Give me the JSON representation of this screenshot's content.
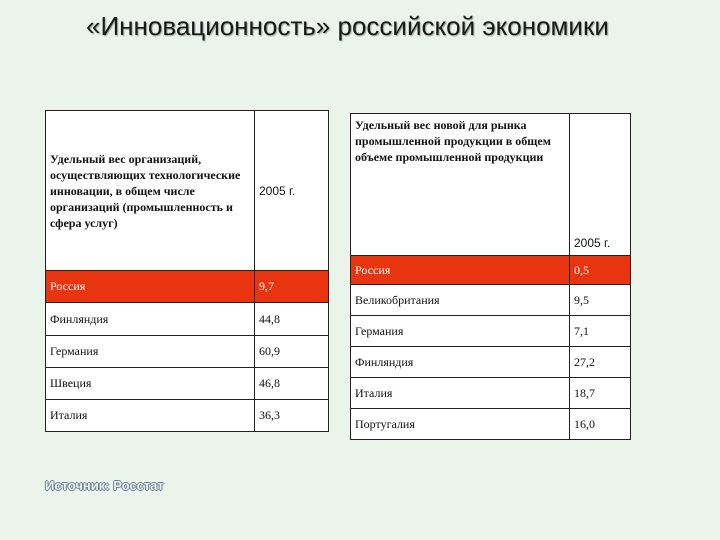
{
  "title": "«Инновационность» российской экономики",
  "left_table": {
    "header_label": "Удельный вес организаций, осуществляющих технологические инновации, в общем числе организаций (промышленность и сфера услуг)",
    "header_year": "2005 г.",
    "rows": [
      {
        "country": "Россия",
        "value": "9,7",
        "highlight": true
      },
      {
        "country": "Финляндия",
        "value": "44,8",
        "highlight": false
      },
      {
        "country": "Германия",
        "value": "60,9",
        "highlight": false
      },
      {
        "country": "Швеция",
        "value": "46,8",
        "highlight": false
      },
      {
        "country": "Италия",
        "value": "36,3",
        "highlight": false
      }
    ]
  },
  "right_table": {
    "header_label": "Удельный вес новой для рынка промышленной продукции в общем объеме промышленной продукции",
    "header_year": "2005 г.",
    "rows": [
      {
        "country": "Россия",
        "value": "0,5",
        "highlight": true
      },
      {
        "country": "Великобритания",
        "value": "9,5",
        "highlight": false
      },
      {
        "country": "Германия",
        "value": "7,1",
        "highlight": false
      },
      {
        "country": "Финляндия",
        "value": "27,2",
        "highlight": false
      },
      {
        "country": "Италия",
        "value": "18,7",
        "highlight": false
      },
      {
        "country": "Португалия",
        "value": "16,0",
        "highlight": false
      }
    ]
  },
  "source": "Источник: Росстат",
  "colors": {
    "highlight": "#e8350f",
    "background": "#eaf4ea"
  }
}
